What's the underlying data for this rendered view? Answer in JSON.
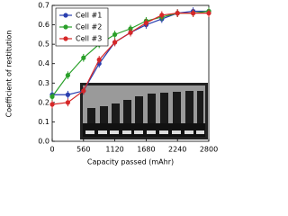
{
  "chart_data": {
    "type": "line",
    "xlabel": "Capacity passed (mAhr)",
    "ylabel": "Coefficient of restitution",
    "x": [
      0,
      280,
      560,
      840,
      1120,
      1400,
      1680,
      1960,
      2240,
      2520,
      2800
    ],
    "series": [
      {
        "name": "Cell #1",
        "color": "#2a3fb0",
        "values": [
          0.24,
          0.24,
          0.26,
          0.4,
          0.51,
          0.56,
          0.6,
          0.63,
          0.66,
          0.67,
          0.67
        ],
        "errors": [
          0.02,
          0.02,
          0.02,
          0.02,
          0.02,
          0.02,
          0.02,
          0.02,
          0.02,
          0.02,
          0.02
        ]
      },
      {
        "name": "Cell #2",
        "color": "#2aa02a",
        "values": [
          0.23,
          0.34,
          0.43,
          0.5,
          0.55,
          0.58,
          0.62,
          0.64,
          0.66,
          0.66,
          0.67
        ],
        "errors": [
          0.02,
          0.02,
          0.02,
          0.02,
          0.02,
          0.02,
          0.02,
          0.02,
          0.02,
          0.02,
          0.02
        ]
      },
      {
        "name": "Cell #3",
        "color": "#d62728",
        "values": [
          0.19,
          0.2,
          0.26,
          0.42,
          0.51,
          0.56,
          0.61,
          0.65,
          0.66,
          0.66,
          0.66
        ],
        "errors": [
          0.02,
          0.02,
          0.02,
          0.02,
          0.02,
          0.02,
          0.02,
          0.02,
          0.02,
          0.02,
          0.02
        ]
      }
    ],
    "xlim": [
      0,
      2800
    ],
    "xticks": [
      0,
      560,
      1120,
      1680,
      2240,
      2800
    ],
    "ylim": [
      0,
      0.7
    ],
    "yticks": [
      {
        "value": 0,
        "label": "0.0"
      },
      0.1,
      0.2,
      0.3,
      0.4,
      0.5,
      0.6,
      0.7
    ],
    "legend": "upper left"
  }
}
